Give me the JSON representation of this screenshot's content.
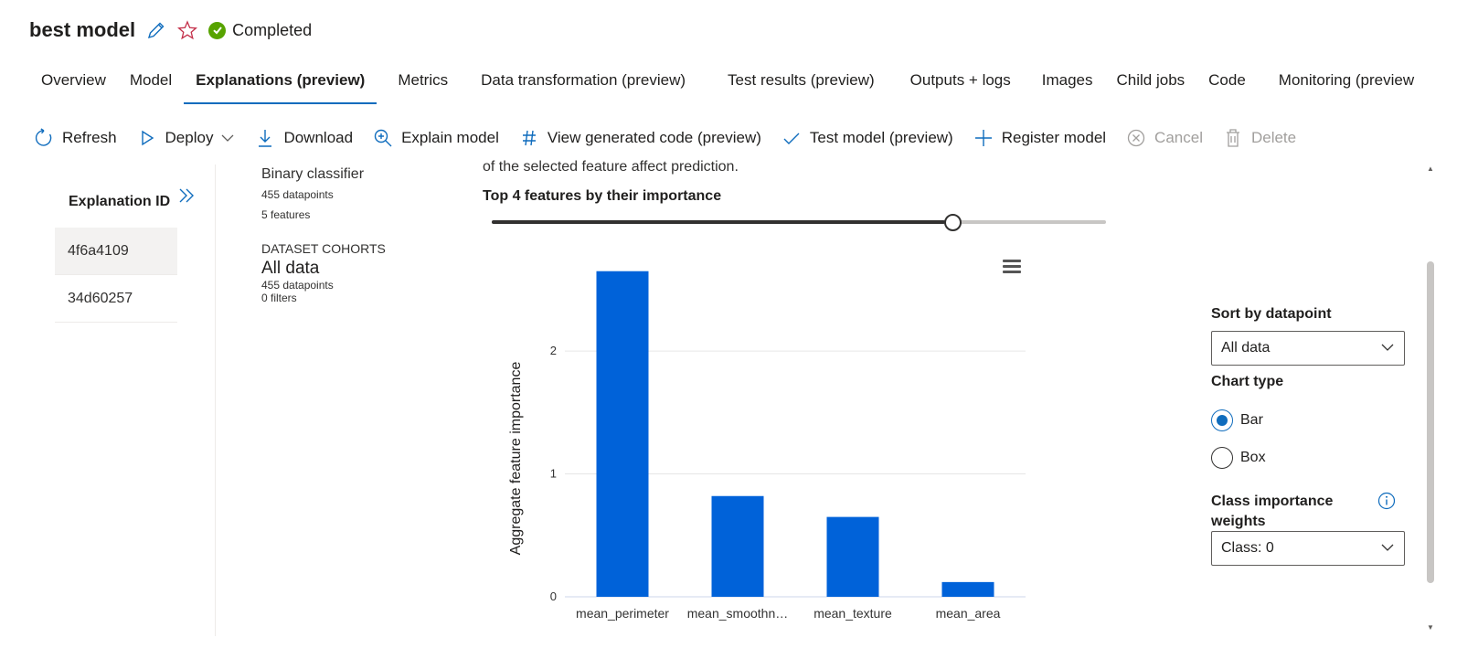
{
  "header": {
    "title": "best model",
    "status": "Completed"
  },
  "tabs": [
    {
      "label": "Overview"
    },
    {
      "label": "Model"
    },
    {
      "label": "Explanations (preview)"
    },
    {
      "label": "Metrics"
    },
    {
      "label": "Data transformation (preview)"
    },
    {
      "label": "Test results (preview)"
    },
    {
      "label": "Outputs + logs"
    },
    {
      "label": "Images"
    },
    {
      "label": "Child jobs"
    },
    {
      "label": "Code"
    },
    {
      "label": "Monitoring (preview"
    }
  ],
  "active_tab": "Explanations (preview)",
  "toolbar": {
    "refresh": "Refresh",
    "deploy": "Deploy",
    "download": "Download",
    "explain": "Explain model",
    "view_code": "View generated code (preview)",
    "test_model": "Test model (preview)",
    "register": "Register model",
    "cancel": "Cancel",
    "delete": "Delete"
  },
  "explanations": {
    "header": "Explanation ID",
    "rows": [
      {
        "id": "4f6a4109"
      },
      {
        "id": "34d60257"
      }
    ]
  },
  "info": {
    "model_type": "Binary classifier",
    "datapoints": "455 datapoints",
    "features": "5 features",
    "cohorts_caption": "DATASET COHORTS",
    "cohort_name": "All data",
    "cohort_datapoints": "455 datapoints",
    "cohort_filters": "0 filters"
  },
  "main": {
    "cut_text": "of the selected feature affect prediction.",
    "top_label": "Top 4 features by their importance",
    "slider_fraction": 0.75
  },
  "chart_data": {
    "type": "bar",
    "categories": [
      "mean_perimeter",
      "mean_smoothn…",
      "mean_texture",
      "mean_area"
    ],
    "values": [
      2.65,
      0.82,
      0.65,
      0.12
    ],
    "ylabel": "Aggregate feature importance",
    "yticks": [
      0,
      1,
      2
    ],
    "ylim": [
      0,
      2.7
    ],
    "color": "#0062d9",
    "grid": true
  },
  "right_panel": {
    "sort_label": "Sort by datapoint",
    "sort_value": "All data",
    "chart_type_label": "Chart type",
    "option_bar": "Bar",
    "option_box": "Box",
    "selected": "Bar",
    "class_label": "Class importance weights",
    "class_value": "Class: 0"
  }
}
